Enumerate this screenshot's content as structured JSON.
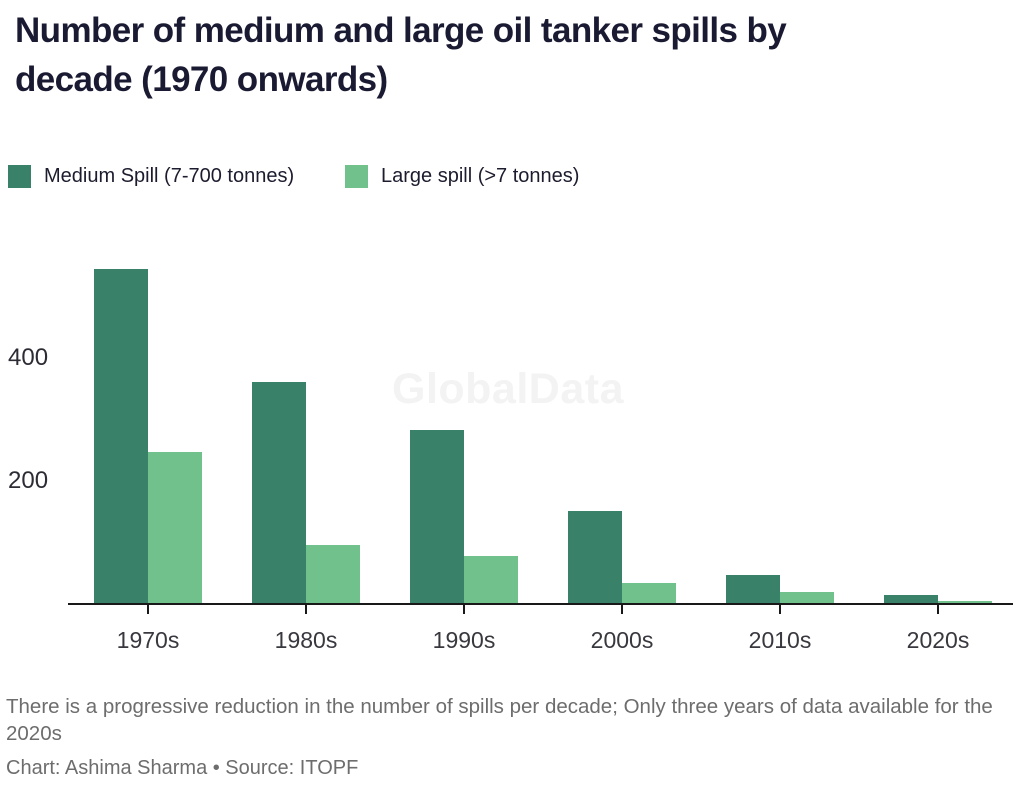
{
  "header": {
    "title": "Number of medium and large oil tanker spills by decade (1970 onwards)",
    "title_lines": [
      "Number of medium and large oil tanker spills by",
      "decade (1970 onwards)"
    ]
  },
  "legend": [
    {
      "label": "Medium Spill (7-700 tonnes)",
      "color": "#3a8169"
    },
    {
      "label": "Large spill (>7 tonnes)",
      "color": "#71c18c"
    }
  ],
  "watermark": "GlobalData",
  "chart_data": {
    "type": "bar",
    "title": "Number of medium and large oil tanker spills by decade (1970 onwards)",
    "categories": [
      "1970s",
      "1980s",
      "1990s",
      "2000s",
      "2010s",
      "2020s"
    ],
    "series": [
      {
        "key": "medium",
        "name": "Medium Spill (7-700 tonnes)",
        "color": "#3a8169",
        "values": [
          543,
          360,
          281,
          149,
          45,
          13
        ]
      },
      {
        "key": "large",
        "name": "Large spill (>7 tonnes)",
        "color": "#71c18c",
        "values": [
          245,
          94,
          77,
          32,
          18,
          3
        ]
      }
    ],
    "xlabel": "",
    "ylabel": "",
    "yticks": [
      200,
      400
    ],
    "ylim": [
      0,
      560
    ],
    "grid": false,
    "legend_position": "top",
    "axis_color": "#191919",
    "colors": {
      "medium_spill": "#3a8169",
      "large_spill": "#71c18c"
    }
  },
  "footer": {
    "note": "There is a progressive reduction in the number of spills per decade; Only three years of data available for the 2020s",
    "credit": "Chart: Ashima Sharma • Source: ITOPF"
  }
}
